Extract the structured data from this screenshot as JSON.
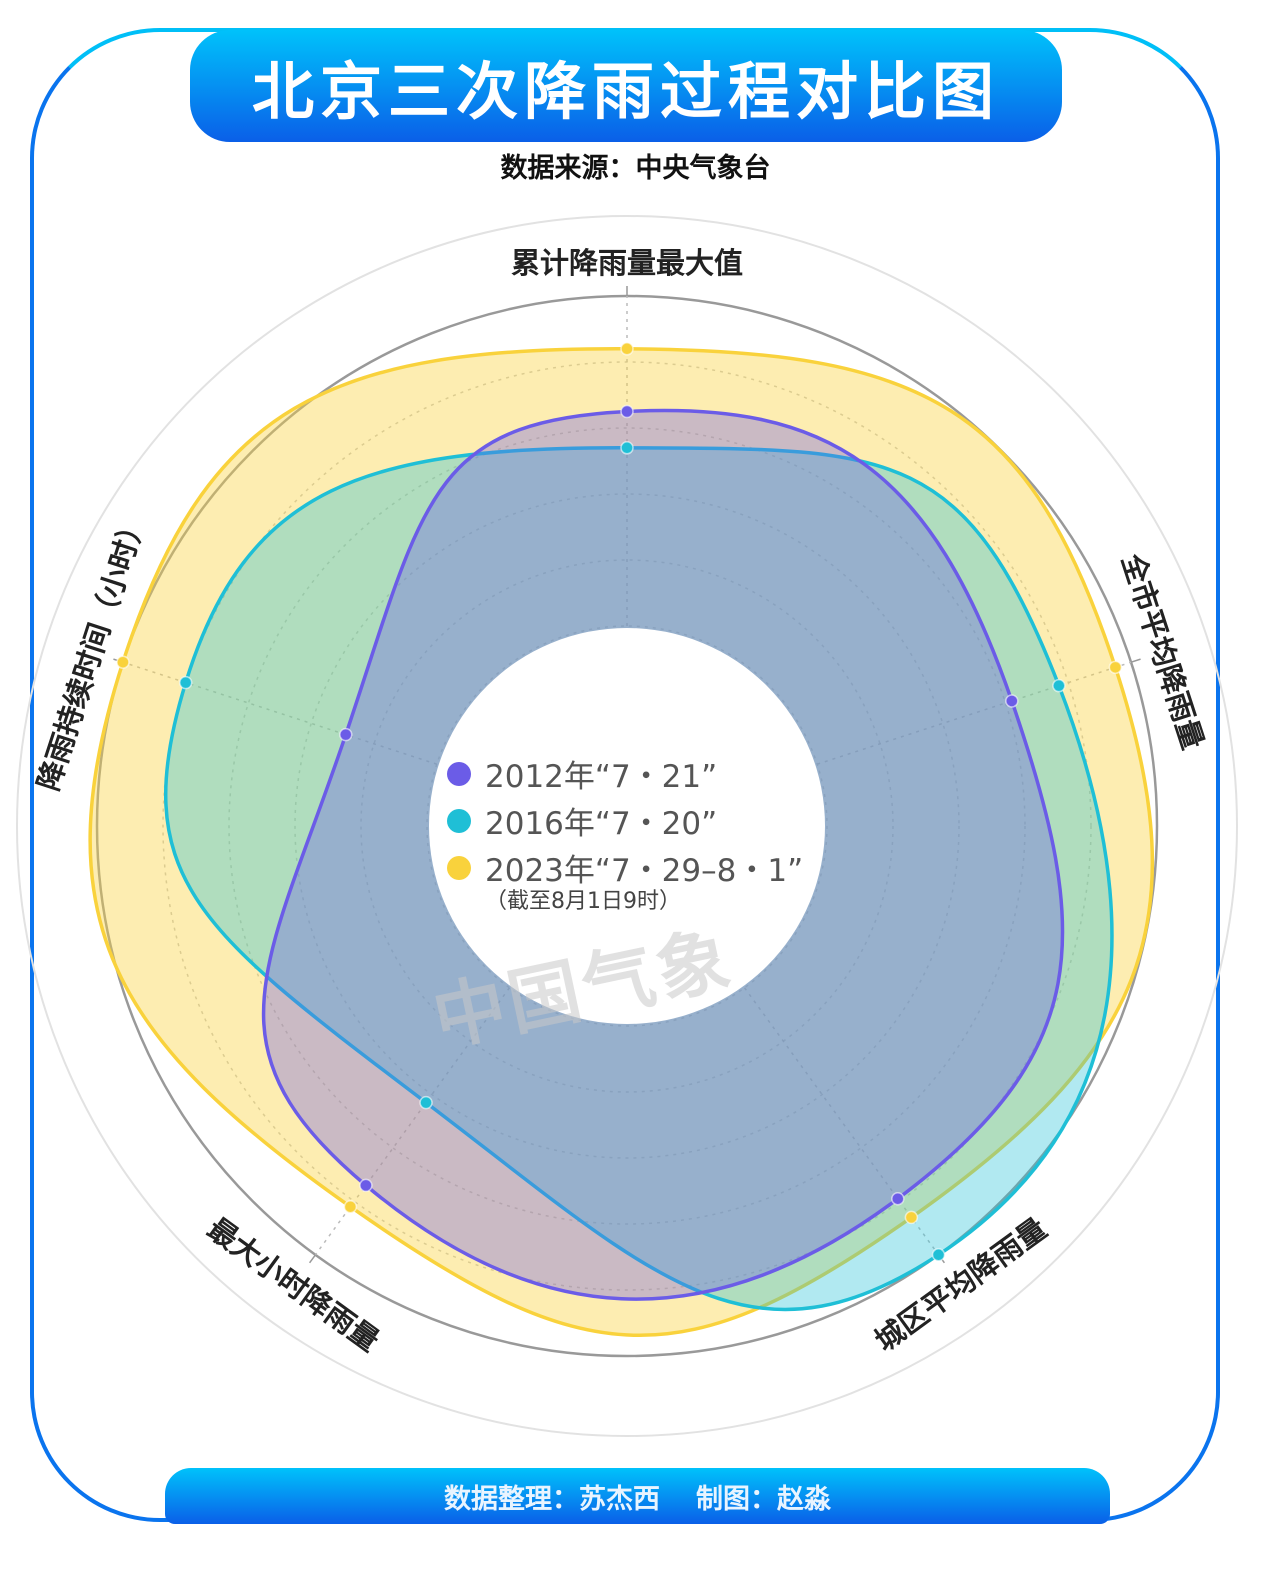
{
  "title": "北京三次降雨过程对比图",
  "source": "数据来源：中央气象台",
  "footer": {
    "data_by": "数据整理：苏杰西",
    "chart_by": "制图：赵淼"
  },
  "watermark": "中国气象",
  "chart_data": {
    "type": "radar",
    "title": "北京三次降雨过程对比图",
    "axes": [
      "累计降雨量最大值",
      "全市平均降雨量",
      "城区平均降雨量",
      "最大小时降雨量",
      "降雨持续时间（小时）"
    ],
    "value_scale": "relative (no numeric ticks shown)",
    "range": [
      0,
      1
    ],
    "grid": true,
    "smooth": true,
    "legend_position": "center",
    "series": [
      {
        "name": "2012年“7・21”",
        "color": "#6b5ce7",
        "values": [
          0.65,
          0.62,
          0.79,
          0.74,
          0.29
        ]
      },
      {
        "name": "2016年“7・20”",
        "color": "#1fbfd6",
        "values": [
          0.54,
          0.77,
          1.0,
          0.43,
          0.8
        ]
      },
      {
        "name": "2023年“7・29–8・1”",
        "note": "（截至8月1日9时）",
        "color": "#f9d23c",
        "values": [
          0.84,
          0.95,
          0.86,
          0.82,
          1.0
        ]
      }
    ]
  }
}
